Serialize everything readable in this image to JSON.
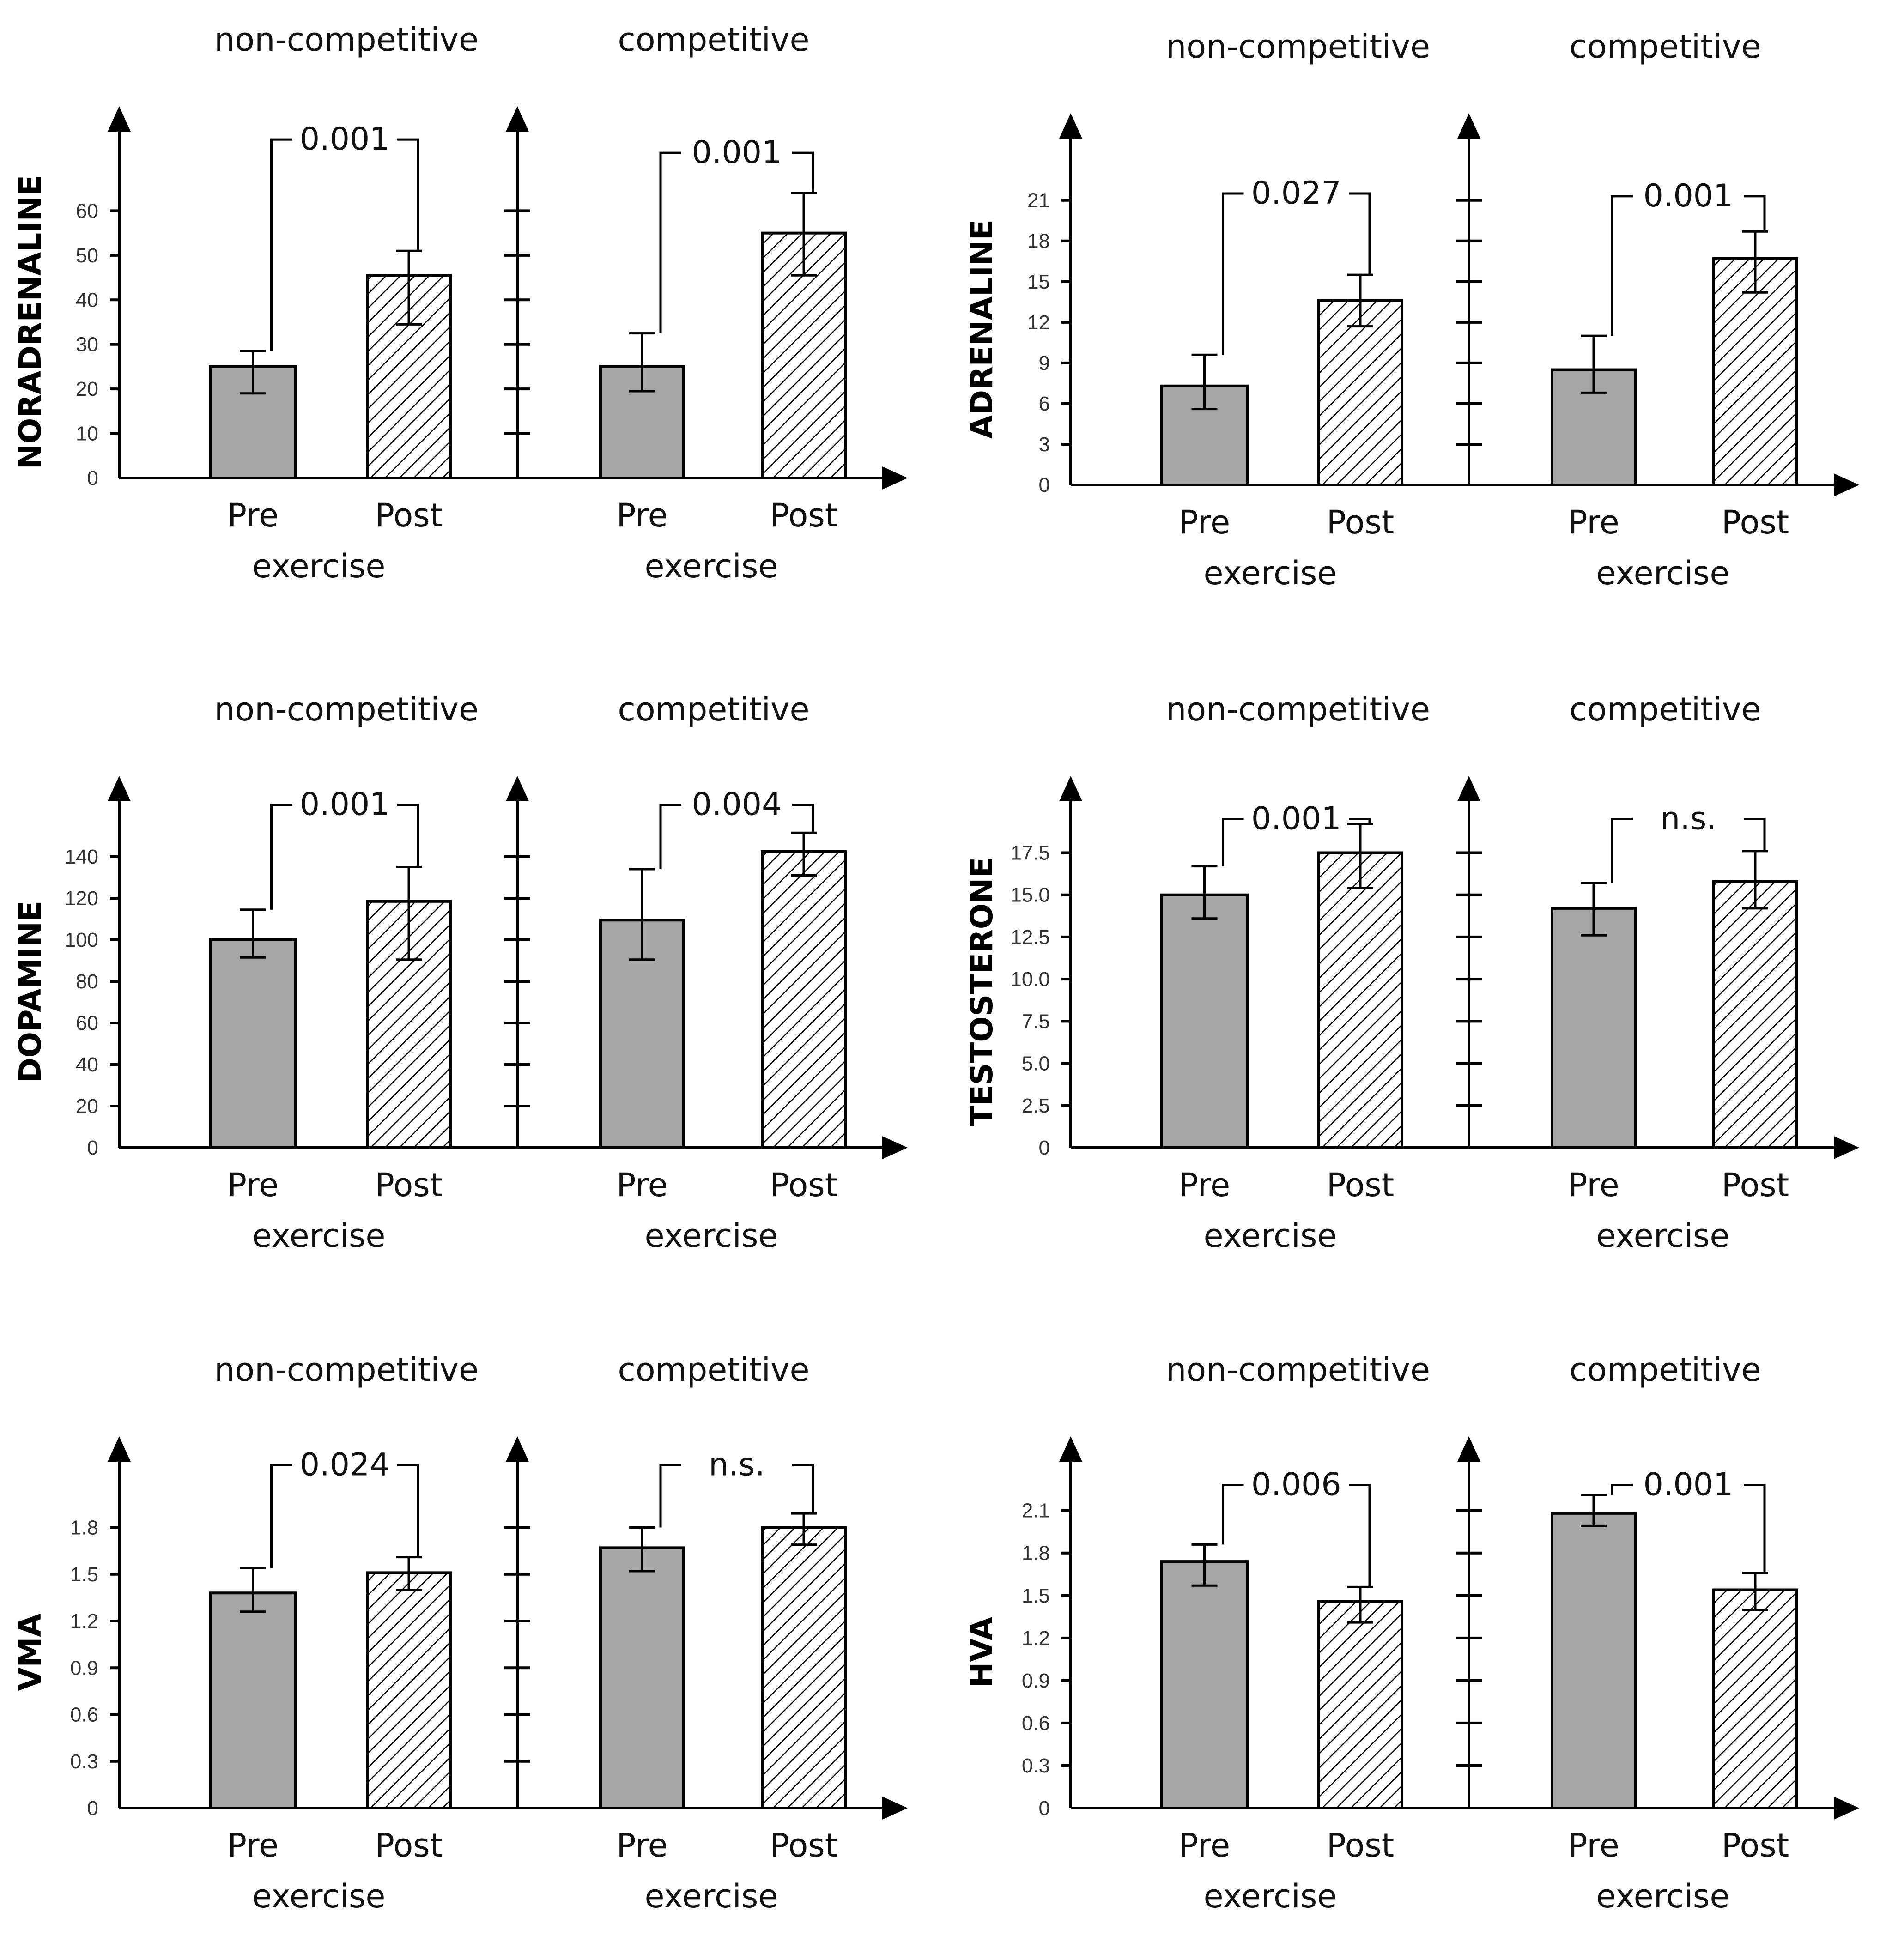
{
  "figure": {
    "colors": {
      "pre_bar": "#a6a6a6",
      "post_bar_hatch": "#000000",
      "axis": "#000000"
    },
    "group_titles": [
      "non-competitive",
      "competitive"
    ],
    "categories": [
      "Pre",
      "Post"
    ],
    "x_sublabel": "exercise"
  },
  "chart_data": [
    {
      "type": "bar",
      "ylabel": "NORADRENALINE",
      "ylim": [
        0,
        70
      ],
      "yticks": [
        0,
        10,
        20,
        30,
        40,
        50,
        60
      ],
      "ytick_labels": [
        "0",
        "10",
        "20",
        "30",
        "40",
        "50",
        "60"
      ],
      "groups": [
        {
          "title": "non-competitive",
          "categories": [
            "Pre",
            "Post"
          ],
          "values": [
            25,
            45.5
          ],
          "err_low": [
            19,
            34.5
          ],
          "err_high": [
            28.5,
            51
          ],
          "pvalue": "0.001",
          "bracket_top": 76
        },
        {
          "title": "competitive",
          "categories": [
            "Pre",
            "Post"
          ],
          "values": [
            25,
            55
          ],
          "err_low": [
            19.5,
            45.5
          ],
          "err_high": [
            32.5,
            64
          ],
          "pvalue": "0.001",
          "bracket_top": 73
        }
      ]
    },
    {
      "type": "bar",
      "ylabel": "ADRENALINE",
      "ylim": [
        0,
        23
      ],
      "yticks": [
        0,
        3,
        6,
        9,
        12,
        15,
        18,
        21
      ],
      "ytick_labels": [
        "0",
        "3",
        "6",
        "9",
        "12",
        "15",
        "18",
        "21"
      ],
      "groups": [
        {
          "title": "non-competitive",
          "categories": [
            "Pre",
            "Post"
          ],
          "values": [
            7.3,
            13.6
          ],
          "err_low": [
            5.6,
            11.7
          ],
          "err_high": [
            9.6,
            15.5
          ],
          "pvalue": "0.027",
          "bracket_top": 21.5
        },
        {
          "title": "competitive",
          "categories": [
            "Pre",
            "Post"
          ],
          "values": [
            8.5,
            16.7
          ],
          "err_low": [
            6.8,
            14.2
          ],
          "err_high": [
            11,
            18.7
          ],
          "pvalue": "0.001",
          "bracket_top": 21.3
        }
      ]
    },
    {
      "type": "bar",
      "ylabel": "DOPAMINE",
      "ylim": [
        0,
        150
      ],
      "yticks": [
        0,
        20,
        40,
        60,
        80,
        100,
        120,
        140
      ],
      "ytick_labels": [
        "0",
        "20",
        "40",
        "60",
        "80",
        "100",
        "120",
        "140"
      ],
      "groups": [
        {
          "title": "non-competitive",
          "categories": [
            "Pre",
            "Post"
          ],
          "values": [
            100,
            118.5
          ],
          "err_low": [
            91.5,
            90.5
          ],
          "err_high": [
            114.5,
            135
          ],
          "pvalue": "0.001",
          "bracket_top": 165
        },
        {
          "title": "competitive",
          "categories": [
            "Pre",
            "Post"
          ],
          "values": [
            109.5,
            142.5
          ],
          "err_low": [
            90.5,
            131
          ],
          "err_high": [
            134,
            151.5
          ],
          "pvalue": "0.004",
          "bracket_top": 165
        }
      ]
    },
    {
      "type": "bar",
      "ylabel": "TESTOSTERONE",
      "ylim": [
        0,
        18.5
      ],
      "yticks": [
        0,
        2.5,
        5.0,
        7.5,
        10.0,
        12.5,
        15.0,
        17.5
      ],
      "ytick_labels": [
        "0",
        "2.5",
        "5.0",
        "7.5",
        "10.0",
        "12.5",
        "15.0",
        "17.5"
      ],
      "groups": [
        {
          "title": "non-competitive",
          "categories": [
            "Pre",
            "Post"
          ],
          "values": [
            15.0,
            17.5
          ],
          "err_low": [
            13.6,
            15.4
          ],
          "err_high": [
            16.7,
            19.2
          ],
          "pvalue": "0.001",
          "bracket_top": 19.5
        },
        {
          "title": "competitive",
          "categories": [
            "Pre",
            "Post"
          ],
          "values": [
            14.2,
            15.8
          ],
          "err_low": [
            12.6,
            14.2
          ],
          "err_high": [
            15.7,
            17.6
          ],
          "pvalue": "n.s.",
          "bracket_top": 19.5
        }
      ]
    },
    {
      "type": "bar",
      "ylabel": "VMA",
      "ylim": [
        0,
        2.0
      ],
      "yticks": [
        0,
        0.3,
        0.6,
        0.9,
        1.2,
        1.5,
        1.8
      ],
      "ytick_labels": [
        "0",
        "0.3",
        "0.6",
        "0.9",
        "1.2",
        "1.5",
        "1.8"
      ],
      "groups": [
        {
          "title": "non-competitive",
          "categories": [
            "Pre",
            "Post"
          ],
          "values": [
            1.38,
            1.51
          ],
          "err_low": [
            1.26,
            1.4
          ],
          "err_high": [
            1.54,
            1.61
          ],
          "pvalue": "0.024",
          "bracket_top": 2.2
        },
        {
          "title": "competitive",
          "categories": [
            "Pre",
            "Post"
          ],
          "values": [
            1.67,
            1.8
          ],
          "err_low": [
            1.52,
            1.69
          ],
          "err_high": [
            1.8,
            1.89
          ],
          "pvalue": "n.s.",
          "bracket_top": 2.2
        }
      ]
    },
    {
      "type": "bar",
      "ylabel": "HVA",
      "ylim": [
        0,
        2.2
      ],
      "yticks": [
        0,
        0.3,
        0.6,
        0.9,
        1.2,
        1.5,
        1.8,
        2.1
      ],
      "ytick_labels": [
        "0",
        "0.3",
        "0.6",
        "0.9",
        "1.2",
        "1.5",
        "1.8",
        "2.1"
      ],
      "groups": [
        {
          "title": "non-competitive",
          "categories": [
            "Pre",
            "Post"
          ],
          "values": [
            1.74,
            1.46
          ],
          "err_low": [
            1.57,
            1.31
          ],
          "err_high": [
            1.86,
            1.56
          ],
          "pvalue": "0.006",
          "bracket_top": 2.28
        },
        {
          "title": "competitive",
          "categories": [
            "Pre",
            "Post"
          ],
          "values": [
            2.08,
            1.54
          ],
          "err_low": [
            1.99,
            1.4
          ],
          "err_high": [
            2.21,
            1.66
          ],
          "pvalue": "0.001",
          "bracket_top": 2.28
        }
      ]
    }
  ]
}
